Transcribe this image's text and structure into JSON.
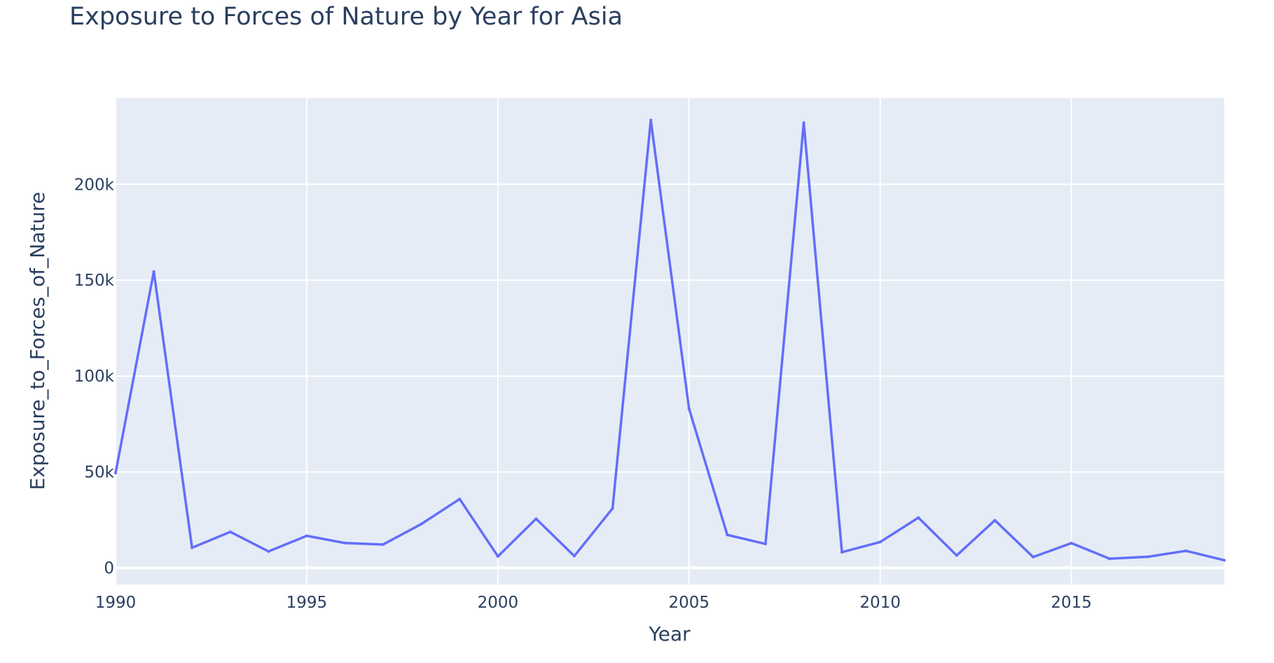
{
  "chart_data": {
    "type": "line",
    "title": "Exposure to Forces of Nature by Year for Asia",
    "xlabel": "Year",
    "ylabel": "Exposure_to_Forces_of_Nature",
    "xlim": [
      1990,
      2019
    ],
    "ylim": [
      -8700,
      245000
    ],
    "x_ticks": [
      1990,
      1995,
      2000,
      2005,
      2010,
      2015
    ],
    "x_tick_labels": [
      "1990",
      "1995",
      "2000",
      "2005",
      "2010",
      "2015"
    ],
    "y_ticks": [
      0,
      50000,
      100000,
      150000,
      200000
    ],
    "y_tick_labels": [
      "0",
      "50k",
      "100k",
      "150k",
      "200k"
    ],
    "grid": true,
    "plot_background": "#e5ecf6",
    "line_color": "#636efa",
    "x": [
      1990,
      1991,
      1992,
      1993,
      1994,
      1995,
      1996,
      1997,
      1998,
      1999,
      2000,
      2001,
      2002,
      2003,
      2004,
      2005,
      2006,
      2007,
      2008,
      2009,
      2010,
      2011,
      2012,
      2013,
      2014,
      2015,
      2016,
      2017,
      2018,
      2019
    ],
    "values": [
      49500,
      154500,
      10500,
      18800,
      8600,
      16700,
      13000,
      12200,
      22900,
      35900,
      6000,
      25600,
      6200,
      31000,
      233500,
      83000,
      17200,
      12500,
      232200,
      8200,
      13500,
      26200,
      6500,
      24800,
      5700,
      12900,
      4800,
      5800,
      8900,
      4000
    ]
  }
}
